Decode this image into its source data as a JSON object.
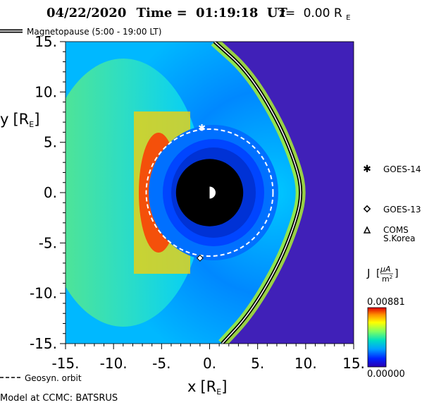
{
  "title": {
    "date": "04/22/2020",
    "time_label": "Time =",
    "time": "01:19:18",
    "ut": "UT",
    "z_label": "z=",
    "z_value": "0.00",
    "z_unit_base": "R",
    "z_unit_sub": "E"
  },
  "legend_top": {
    "label": "Magnetopause (5:00 - 19:00 LT)"
  },
  "legend_bottom": {
    "label": "Geosyn. orbit"
  },
  "footer": {
    "model": "Model at CCMC: BATSRUS"
  },
  "satellites": [
    {
      "label": "GOES-14",
      "marker": "asterisk",
      "x": -0.8,
      "y": 6.5
    },
    {
      "label": "GOES-13",
      "marker": "diamond",
      "x": -1.0,
      "y": -6.5
    },
    {
      "label_line1": "COMS",
      "label_line2": "S.Korea",
      "marker": "triangle"
    }
  ],
  "colorbar": {
    "label_base": "J",
    "unit_num": "μA",
    "unit_den_base": "m",
    "unit_den_exp": "2",
    "max_label": "0.00881",
    "min_label": "0.00000",
    "colors": [
      "#2a00b0",
      "#0022ff",
      "#00a0ff",
      "#00e0c0",
      "#80ff60",
      "#ffff00",
      "#ff9000",
      "#e00000"
    ]
  },
  "chart_data": {
    "type": "heatmap",
    "x_range": [
      -15,
      15
    ],
    "y_range": [
      -15,
      15
    ],
    "x_ticks": [
      "-15.",
      "-10.",
      "-5.",
      "0.",
      "5.",
      "10.",
      "15."
    ],
    "y_ticks": [
      "15.",
      "10.",
      "5.",
      "0.",
      "-5.",
      "-10.",
      "-15."
    ],
    "x_tick_values": [
      -15,
      -10,
      -5,
      0,
      5,
      10,
      15
    ],
    "y_tick_values": [
      15,
      10,
      5,
      0,
      -5,
      -10,
      -15
    ],
    "xlabel_base": "x",
    "xlabel_sub": "E",
    "ylabel_base": "y",
    "ylabel_sub": "E",
    "geosync_radius": 6.6,
    "earth_radius": 3.5,
    "magnetopause": {
      "subsolar_x": 9.6,
      "curve": [
        [
          0.5,
          15
        ],
        [
          4,
          12
        ],
        [
          7.2,
          7
        ],
        [
          9.1,
          2.5
        ],
        [
          9.6,
          0
        ],
        [
          9.1,
          -2.5
        ],
        [
          7.3,
          -7
        ],
        [
          4.2,
          -12
        ],
        [
          1.3,
          -15
        ]
      ]
    },
    "grid": false
  }
}
